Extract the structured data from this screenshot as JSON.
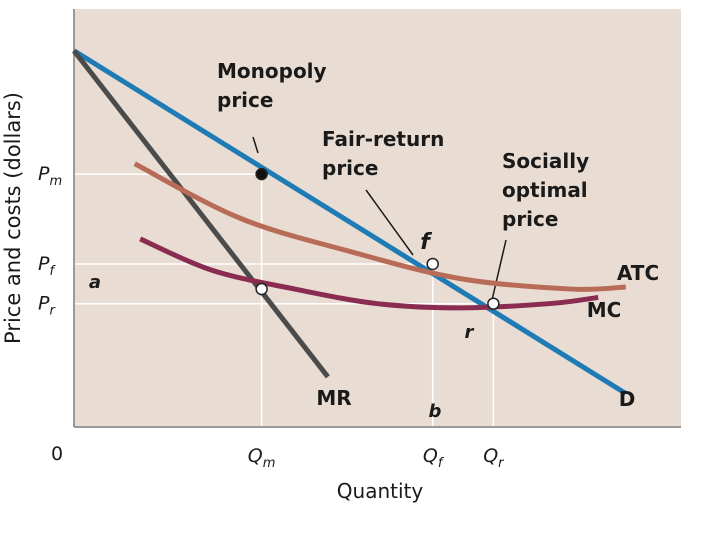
{
  "chart_data": {
    "type": "line",
    "title": "",
    "xlabel": "Quantity",
    "ylabel": "Price and costs (dollars)",
    "origin_label": "0",
    "x_ticks": [
      {
        "main": "Q",
        "sub": "m"
      },
      {
        "main": "Q",
        "sub": "f"
      },
      {
        "main": "Q",
        "sub": "r"
      }
    ],
    "y_ticks": [
      {
        "main": "P",
        "sub": "m"
      },
      {
        "main": "P",
        "sub": "f"
      },
      {
        "main": "P",
        "sub": "r"
      }
    ],
    "series": [
      {
        "name": "D",
        "color": "#1f7bb5",
        "points": [
          [
            0,
            9.0
          ],
          [
            10,
            0.8
          ]
        ]
      },
      {
        "name": "MR",
        "color": "#4b4b4b",
        "points": [
          [
            0,
            9.0
          ],
          [
            4.6,
            1.2
          ]
        ]
      },
      {
        "name": "ATC",
        "color": "#b86c58",
        "points": [
          [
            1.1,
            6.3
          ],
          [
            3.0,
            5.0
          ],
          [
            5.0,
            4.2
          ],
          [
            7.0,
            3.55
          ],
          [
            9.0,
            3.3
          ],
          [
            10.0,
            3.35
          ]
        ]
      },
      {
        "name": "MC",
        "color": "#8a2c52",
        "points": [
          [
            1.2,
            4.5
          ],
          [
            2.5,
            3.75
          ],
          [
            4.0,
            3.3
          ],
          [
            5.5,
            2.95
          ],
          [
            7.0,
            2.85
          ],
          [
            8.6,
            2.95
          ],
          [
            9.5,
            3.1
          ]
        ]
      }
    ],
    "points": [
      {
        "label": "",
        "x": 3.4,
        "y": 6.05,
        "style": "filled"
      },
      {
        "label": "f",
        "x": 6.5,
        "y": 3.9,
        "style": "open"
      },
      {
        "label": "",
        "x": 7.6,
        "y": 2.95,
        "style": "open"
      },
      {
        "label": "",
        "x": 3.4,
        "y": 3.3,
        "style": "open"
      }
    ],
    "annotations": {
      "monopoly": [
        "Monopoly",
        "price"
      ],
      "fair_return": [
        "Fair-return",
        "price"
      ],
      "socially_optimal": [
        "Socially",
        "optimal",
        "price"
      ],
      "a": "a",
      "b": "b",
      "r": "r"
    },
    "xlim": [
      0,
      11
    ],
    "ylim": [
      0,
      10
    ],
    "grid": false,
    "legend": "none",
    "background": "#e9ddd3"
  }
}
